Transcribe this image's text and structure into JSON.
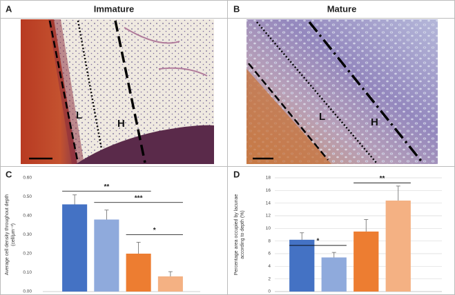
{
  "panels": [
    {
      "letter": "A",
      "title": "Immature",
      "zones": [
        "L",
        "H"
      ]
    },
    {
      "letter": "B",
      "title": "Mature",
      "zones": [
        "L",
        "H"
      ]
    }
  ],
  "chart_data": [
    {
      "type": "bar",
      "letter": "C",
      "ylabel": [
        "Average cell density throughout depth",
        "(cell/μm⁻²)"
      ],
      "categories": [
        null,
        null,
        null,
        null
      ],
      "values": [
        0.46,
        0.38,
        0.2,
        0.08
      ],
      "errors": [
        0.05,
        0.05,
        0.06,
        0.025
      ],
      "colors": [
        "#4472c4",
        "#8faadc",
        "#ed7d31",
        "#f4b183"
      ],
      "ylim": [
        0,
        0.6
      ],
      "yticks": [
        {
          "value": 0,
          "label": "0.00"
        },
        {
          "value": 0.1,
          "label": "0.10"
        },
        {
          "value": 0.2,
          "label": "0.20"
        },
        {
          "value": 0.3,
          "label": "0.30"
        },
        {
          "value": 0.4,
          "label": "0.40"
        },
        {
          "value": 0.5,
          "label": "0.50"
        },
        {
          "value": 0.6,
          "label": "0.60"
        }
      ],
      "grid": false,
      "annotations": [
        {
          "text": "**",
          "from": 0,
          "to": 2,
          "y": 0.53
        },
        {
          "text": "***",
          "from": 1,
          "to": 3,
          "y": 0.47
        },
        {
          "text": "*",
          "from": 2,
          "to": 3,
          "y": 0.3
        }
      ]
    },
    {
      "type": "bar",
      "letter": "D",
      "ylabel": [
        "Percentage area occupied by lacunae",
        "according to depth (%)"
      ],
      "categories": [
        null,
        null,
        null,
        null
      ],
      "values": [
        8.2,
        5.4,
        9.5,
        14.4
      ],
      "errors": [
        1.1,
        0.8,
        1.9,
        2.3
      ],
      "colors": [
        "#4472c4",
        "#8faadc",
        "#ed7d31",
        "#f4b183"
      ],
      "ylim": [
        0,
        18
      ],
      "yticks": [
        0,
        2,
        4,
        6,
        8,
        10,
        12,
        14,
        16,
        18
      ],
      "grid": true,
      "annotations": [
        {
          "text": "*",
          "from": 0,
          "to": 1,
          "y": 7.3
        },
        {
          "text": "**",
          "from": 2,
          "to": 3,
          "y": 17.2
        }
      ]
    }
  ]
}
